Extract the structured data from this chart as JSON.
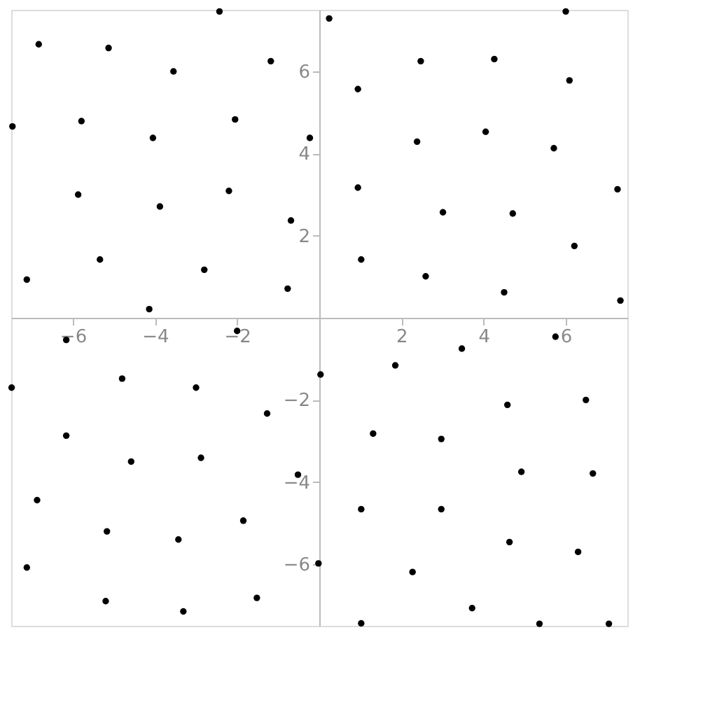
{
  "chart_data": {
    "type": "scatter",
    "marker": "circle",
    "xlim": [
      -7.5,
      7.5
    ],
    "ylim": [
      -7.5,
      7.5
    ],
    "xticks": [
      -6,
      -4,
      -2,
      2,
      4,
      6
    ],
    "yticks": [
      -6,
      -4,
      -2,
      2,
      4,
      6
    ],
    "series": [
      {
        "color": "#000000",
        "x": [
          -2.43,
          -6.83,
          -5.13,
          -3.55,
          -1.18,
          -7.47,
          -5.79,
          -4.05,
          -2.05,
          -0.23,
          -5.87,
          -3.88,
          -2.2,
          -0.69,
          -7.12,
          -5.34,
          -2.8,
          -0.77,
          -4.14,
          0.24,
          6.0,
          2.47,
          4.26,
          0.94,
          6.09,
          2.38,
          4.05,
          5.71,
          0.94,
          3.01,
          4.71,
          7.26,
          1.02,
          6.21,
          2.59,
          4.5,
          7.33,
          -6.16,
          -2.0,
          -7.49,
          -4.8,
          -3.0,
          0.03,
          -1.27,
          -6.16,
          -4.58,
          -2.88,
          -0.52,
          -6.87,
          -5.17,
          -1.85,
          -3.43,
          -7.12,
          -0.02,
          -5.2,
          -1.52,
          -3.31,
          5.75,
          3.47,
          1.85,
          6.49,
          4.58,
          1.31,
          2.97,
          4.92,
          6.66,
          1.02,
          2.97,
          4.63,
          6.3,
          2.27,
          3.72,
          1.02,
          5.36,
          7.05
        ],
        "values": [
          7.46,
          6.66,
          6.57,
          6.0,
          6.25,
          4.66,
          4.79,
          4.38,
          4.83,
          4.38,
          3.0,
          2.71,
          3.09,
          2.37,
          0.93,
          1.42,
          1.17,
          0.71,
          0.21,
          7.29,
          7.46,
          6.25,
          6.3,
          5.57,
          5.78,
          4.29,
          4.53,
          4.13,
          3.17,
          2.57,
          2.54,
          3.13,
          1.42,
          1.75,
          1.01,
          0.62,
          0.42,
          -0.54,
          -0.32,
          -1.7,
          -1.48,
          -1.7,
          -1.38,
          -2.33,
          -2.87,
          -3.5,
          -3.41,
          -3.82,
          -4.44,
          -5.2,
          -4.94,
          -5.4,
          -6.08,
          -5.98,
          -6.9,
          -6.82,
          -7.15,
          -0.46,
          -0.75,
          -1.16,
          -2.0,
          -2.12,
          -2.82,
          -2.95,
          -3.75,
          -3.79,
          -4.66,
          -4.66,
          -5.46,
          -5.7,
          -6.19,
          -7.07,
          -7.44,
          -7.45,
          -7.45
        ]
      }
    ]
  }
}
